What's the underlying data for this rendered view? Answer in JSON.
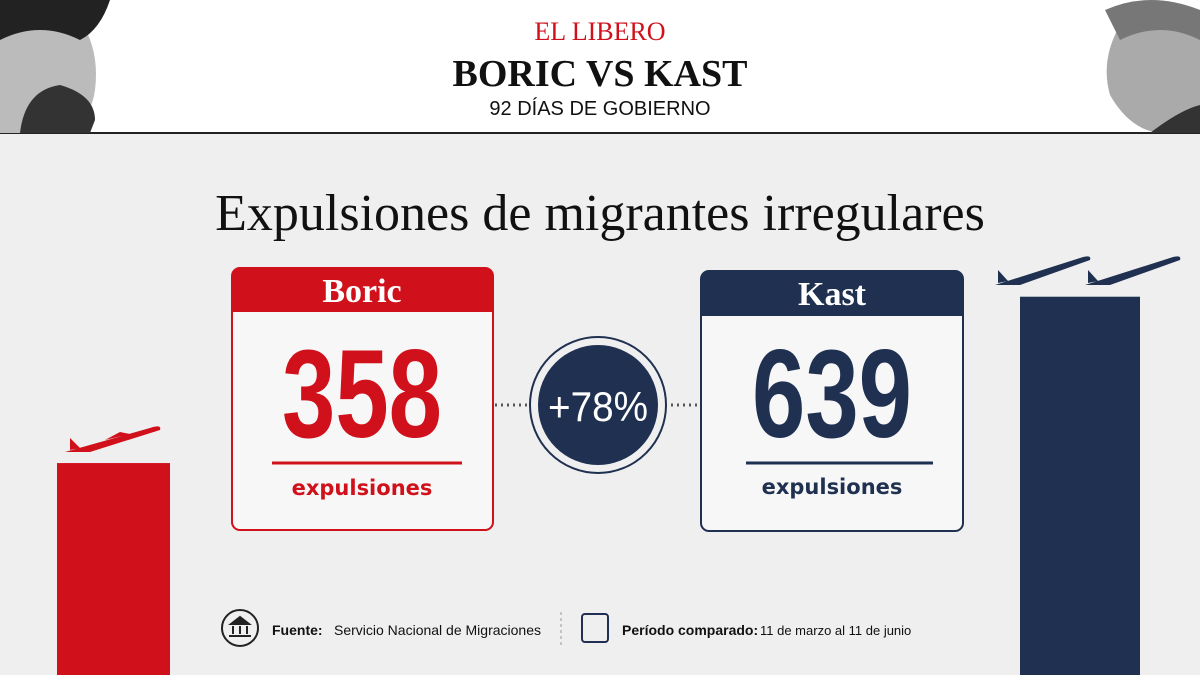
{
  "header": {
    "brand": "EL LIBERO",
    "title": "BORIC VS KAST",
    "subtitle": "92 DÍAS DE GOBIERNO"
  },
  "headline": "Expulsiones de migrantes irregulares",
  "cards": [
    {
      "name": "Boric",
      "value": 358,
      "unit": "expulsiones",
      "color": "#d0101a"
    },
    {
      "name": "Kast",
      "value": 639,
      "unit": "expulsiones",
      "color": "#1f3050"
    }
  ],
  "change": "+78%",
  "footer": {
    "source_label": "Fuente:",
    "source": "Servicio Nacional de Migraciones",
    "period_label": "Período comparado:",
    "period": "11 de marzo al 11 de junio"
  }
}
